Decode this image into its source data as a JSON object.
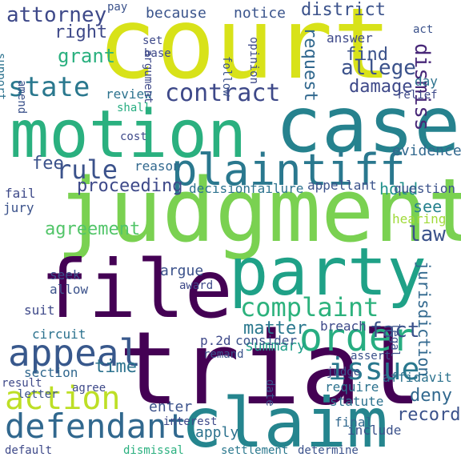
{
  "words": [
    {
      "text": "court",
      "color": "#d8e219"
    },
    {
      "text": "motion",
      "color": "#2ab07f"
    },
    {
      "text": "case",
      "color": "#26828e"
    },
    {
      "text": "judgment",
      "color": "#7ad151"
    },
    {
      "text": "party",
      "color": "#1fa187"
    },
    {
      "text": "file",
      "color": "#440154"
    },
    {
      "text": "trial",
      "color": "#440154"
    },
    {
      "text": "claim",
      "color": "#25858e"
    },
    {
      "text": "plaintiff",
      "color": "#2a788e"
    },
    {
      "text": "defendant",
      "color": "#31688e"
    },
    {
      "text": "action",
      "color": "#bddf26"
    },
    {
      "text": "order",
      "color": "#27ad81"
    },
    {
      "text": "appeal",
      "color": "#38588c"
    },
    {
      "text": "complaint",
      "color": "#2db27d"
    },
    {
      "text": "issue",
      "color": "#2a788e"
    },
    {
      "text": "state",
      "color": "#2a788e"
    },
    {
      "text": "contract",
      "color": "#3e4989"
    },
    {
      "text": "rule",
      "color": "#3b528b"
    },
    {
      "text": "agreement",
      "color": "#52c569"
    },
    {
      "text": "fact",
      "color": "#3b528b"
    },
    {
      "text": "attorney",
      "color": "#3e4989"
    },
    {
      "text": "because",
      "color": "#3a548c"
    },
    {
      "text": "notice",
      "color": "#3a548c"
    },
    {
      "text": "district",
      "color": "#3b528b"
    },
    {
      "text": "right",
      "color": "#3e4989"
    },
    {
      "text": "grant",
      "color": "#2ab07f"
    },
    {
      "text": "allege",
      "color": "#3b528b"
    },
    {
      "text": "find",
      "color": "#3b528b"
    },
    {
      "text": "damage",
      "color": "#3e4989"
    },
    {
      "text": "dismiss",
      "color": "#482878"
    },
    {
      "text": "request",
      "color": "#31688e"
    },
    {
      "text": "hold",
      "color": "#21918c"
    },
    {
      "text": "fee",
      "color": "#3b528b"
    },
    {
      "text": "law",
      "color": "#3b528b"
    },
    {
      "text": "proceeding",
      "color": "#3e4989"
    },
    {
      "text": "jurisdiction",
      "color": "#31688e"
    },
    {
      "text": "matter",
      "color": "#2a788e"
    },
    {
      "text": "summary",
      "color": "#1f9e89"
    },
    {
      "text": "time",
      "color": "#2c728e"
    },
    {
      "text": "deny",
      "color": "#31688e"
    },
    {
      "text": "record",
      "color": "#3b528b"
    },
    {
      "text": "enter",
      "color": "#3b528b"
    },
    {
      "text": "apply",
      "color": "#2c728e"
    },
    {
      "text": "statute",
      "color": "#2c728e"
    },
    {
      "text": "require",
      "color": "#2c728e"
    },
    {
      "text": "affidavit",
      "color": "#2c728e"
    },
    {
      "text": "dismissal",
      "color": "#2ab07f"
    },
    {
      "text": "settlement",
      "color": "#2a788e"
    },
    {
      "text": "determine",
      "color": "#3b528b"
    },
    {
      "text": "include",
      "color": "#3b528b"
    },
    {
      "text": "remand",
      "color": "#3b528b"
    },
    {
      "text": "final",
      "color": "#31688e"
    },
    {
      "text": "interest",
      "color": "#3e4989"
    },
    {
      "text": "section",
      "color": "#31688e"
    },
    {
      "text": "circuit",
      "color": "#2c728e"
    },
    {
      "text": "result",
      "color": "#3e4989"
    },
    {
      "text": "breach",
      "color": "#3e4989"
    },
    {
      "text": "review",
      "color": "#2c728e"
    },
    {
      "text": "shall",
      "color": "#27ad81"
    },
    {
      "text": "cost",
      "color": "#3e4989"
    },
    {
      "text": "evidence",
      "color": "#31688e"
    },
    {
      "text": "question",
      "color": "#3b528b"
    },
    {
      "text": "reason",
      "color": "#31688e"
    },
    {
      "text": "decision",
      "color": "#2c728e"
    },
    {
      "text": "failure",
      "color": "#2c728e"
    },
    {
      "text": "appellant",
      "color": "#3b528b"
    },
    {
      "text": "see",
      "color": "#26828e"
    },
    {
      "text": "hearing",
      "color": "#a0da39"
    },
    {
      "text": "fail",
      "color": "#3e4989"
    },
    {
      "text": "jury",
      "color": "#3b528b"
    },
    {
      "text": "argue",
      "color": "#3b528b"
    },
    {
      "text": "seek",
      "color": "#3b528b"
    },
    {
      "text": "allow",
      "color": "#3b528b"
    },
    {
      "text": "suit",
      "color": "#3e4989"
    },
    {
      "text": "consider",
      "color": "#3b528b"
    },
    {
      "text": "award",
      "color": "#3e4989"
    },
    {
      "text": "answer",
      "color": "#3e4989"
    },
    {
      "text": "day",
      "color": "#2c728e"
    },
    {
      "text": "relief",
      "color": "#3e4989"
    },
    {
      "text": "argument",
      "color": "#3e4989"
    },
    {
      "text": "opinion",
      "color": "#3e4989"
    },
    {
      "text": "follow",
      "color": "#3b528b"
    },
    {
      "text": "set",
      "color": "#3e4989"
    },
    {
      "text": "base",
      "color": "#3e4989"
    },
    {
      "text": "support",
      "color": "#2c728e"
    },
    {
      "text": "amend",
      "color": "#3b528b"
    },
    {
      "text": "p.2d",
      "color": "#3e4989"
    },
    {
      "text": "date",
      "color": "#3b528b"
    },
    {
      "text": "agree",
      "color": "#3e4989"
    },
    {
      "text": "letter",
      "color": "#3b528b"
    },
    {
      "text": "default",
      "color": "#3e4989"
    },
    {
      "text": "legal",
      "color": "#3b528b"
    },
    {
      "text": "assert",
      "color": "#3b528b"
    },
    {
      "text": "judge",
      "color": "#3b528b"
    },
    {
      "text": "pay",
      "color": "#3b528b"
    },
    {
      "text": "act",
      "color": "#3b528b"
    }
  ]
}
